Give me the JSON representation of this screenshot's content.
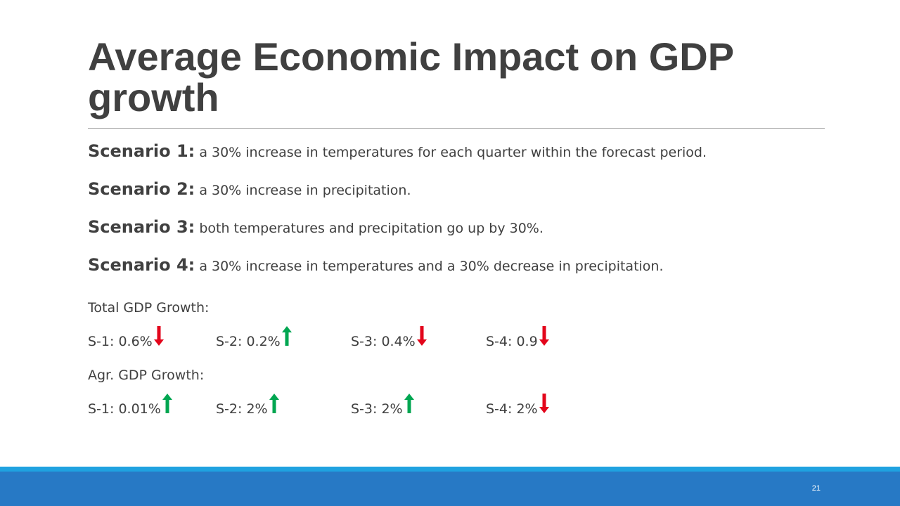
{
  "slide": {
    "title": "Average Economic Impact on GDP growth",
    "scenarios": [
      {
        "name": "Scenario 1:",
        "text": " a 30% increase in temperatures for each quarter within the forecast period."
      },
      {
        "name": "Scenario 2:",
        "text": " a 30% increase in precipitation."
      },
      {
        "name": "Scenario 3:",
        "text": " both temperatures and precipitation go up by 30%."
      },
      {
        "name": "Scenario 4:",
        "text": " a 30% increase in temperatures and a 30% decrease in precipitation."
      }
    ],
    "total_label": "Total GDP Growth:",
    "total": [
      {
        "label": "S-1: 0.6%",
        "direction": "down"
      },
      {
        "label": "S-2: 0.2%",
        "direction": "up"
      },
      {
        "label": "S-3: 0.4%",
        "direction": "down"
      },
      {
        "label": "S-4: 0.9",
        "direction": "down"
      }
    ],
    "agr_label": "Agr. GDP Growth:",
    "agr": [
      {
        "label": "S-1: 0.01%",
        "direction": "up"
      },
      {
        "label": "S-2: 2%",
        "direction": "up"
      },
      {
        "label": "S-3: 2%",
        "direction": "up"
      },
      {
        "label": "S-4: 2%",
        "direction": "down"
      }
    ],
    "page_number": "21"
  },
  "colors": {
    "up": "#00a651",
    "down": "#e3051b",
    "footer_band": "#2779c5",
    "footer_stripe": "#1fa2e0"
  },
  "icons": {
    "up": "green-up-arrow-icon",
    "down": "red-down-arrow-icon"
  }
}
